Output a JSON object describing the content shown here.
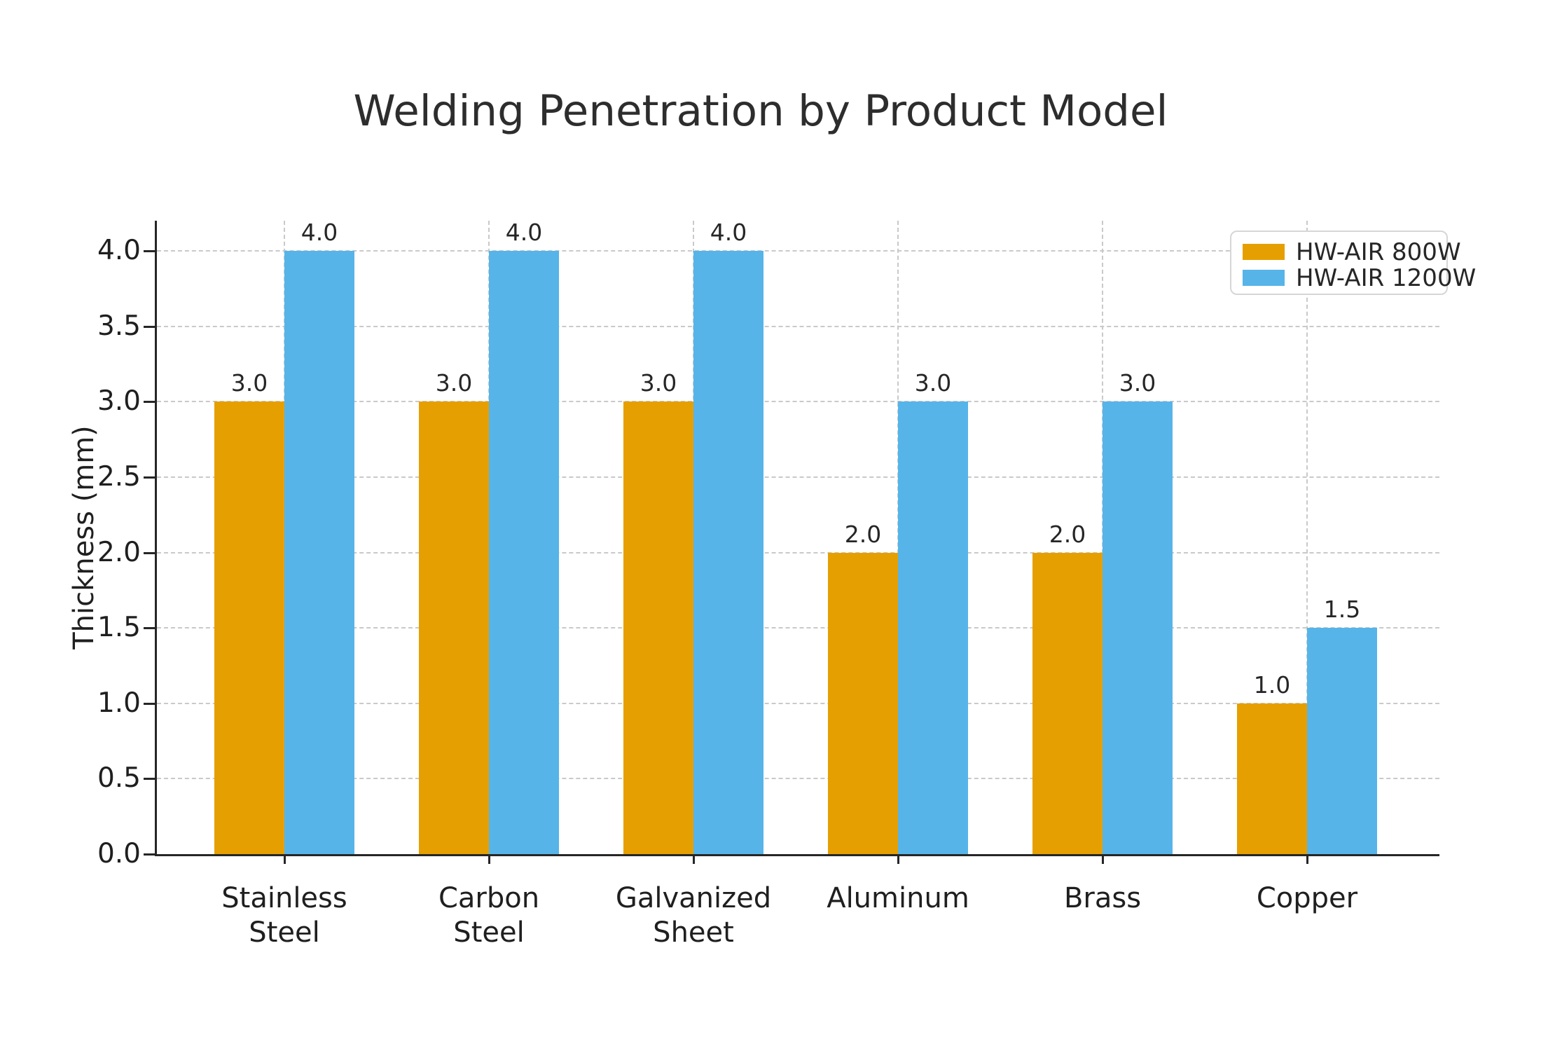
{
  "title": "Welding Penetration by Product Model",
  "chart_data": {
    "type": "bar",
    "title": "Welding Penetration by Product Model",
    "xlabel": "",
    "ylabel": "Thickness (mm)",
    "categories": [
      "Stainless\nSteel",
      "Carbon\nSteel",
      "Galvanized\nSheet",
      "Aluminum",
      "Brass",
      "Copper"
    ],
    "series": [
      {
        "name": "HW-AIR 800W",
        "color": "#E69F00",
        "values": [
          3.0,
          3.0,
          3.0,
          2.0,
          2.0,
          1.0
        ]
      },
      {
        "name": "HW-AIR 1200W",
        "color": "#56B4E9",
        "values": [
          4.0,
          4.0,
          4.0,
          3.0,
          3.0,
          1.5
        ]
      }
    ],
    "bar_value_labels": true,
    "bar_value_format": "one-decimal",
    "ylim": [
      0,
      4.2
    ],
    "yticks": [
      0.0,
      0.5,
      1.0,
      1.5,
      2.0,
      2.5,
      3.0,
      3.5,
      4.0
    ],
    "ytick_labels": [
      "0.0",
      "0.5",
      "1.0",
      "1.5",
      "2.0",
      "2.5",
      "3.0",
      "3.5",
      "4.0"
    ],
    "grid": "dashed-both-axes",
    "legend_position": "upper-right",
    "colors": {
      "series_800w": "#E69F00",
      "series_1200w": "#56B4E9",
      "grid": "#c9c9c9",
      "spine": "#262626",
      "text": "#1f1f1f",
      "background": "#ffffff"
    }
  }
}
